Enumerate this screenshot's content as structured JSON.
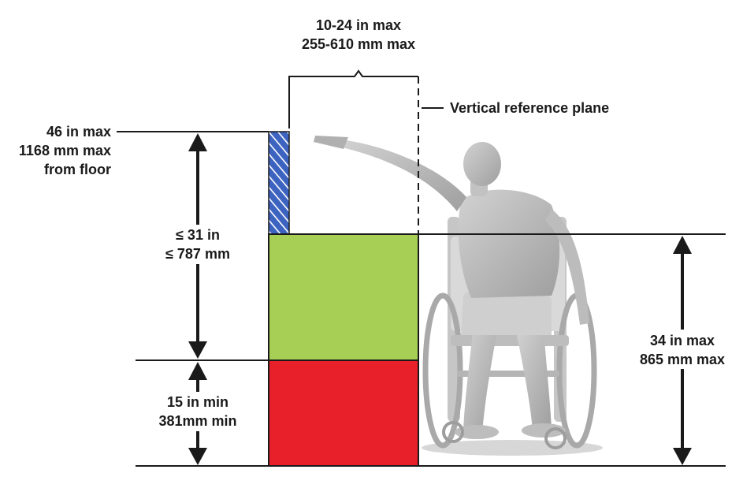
{
  "labels": {
    "top_range": {
      "line1": "10-24 in max",
      "line2": "255-610 mm max"
    },
    "vertical_plane": "Vertical reference plane",
    "top_height": {
      "line1": "46 in max",
      "line2": "1168 mm max",
      "line3": "from floor"
    },
    "upper_span": {
      "line1": "≤ 31 in",
      "line2": "≤ 787 mm"
    },
    "lower_span": {
      "line1": "15 in min",
      "line2": "381mm min"
    },
    "obstruction_height": {
      "line1": "34 in max",
      "line2": "865 mm max"
    }
  },
  "colors": {
    "obstruction_green": "#a8cf55",
    "base_red": "#e8202a",
    "hatch_blue": "#3d63c0",
    "line": "#1a1a1a",
    "figure": "#b9b9b9"
  },
  "icons": {
    "figure": "wheelchair-user-figure"
  }
}
